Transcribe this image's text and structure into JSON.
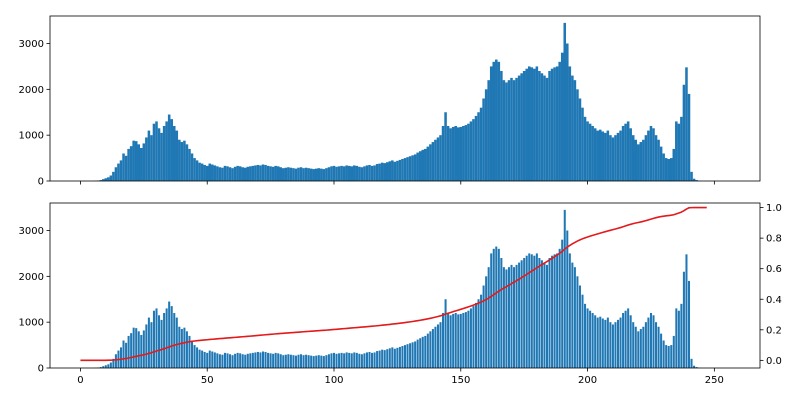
{
  "chart_data": [
    {
      "type": "bar",
      "title": "",
      "xlabel": "",
      "ylabel": "",
      "xlim": [
        -12,
        268
      ],
      "ylim": [
        0,
        3600
      ],
      "yticks": [
        0,
        1000,
        2000,
        3000
      ],
      "xticks": [
        0,
        50,
        100,
        150,
        200,
        250
      ],
      "show_xtick_labels": false,
      "grid": false,
      "bar_color": "#1f77b4",
      "x_start": 0,
      "values": [
        0,
        0,
        0,
        0,
        0,
        0,
        5,
        10,
        20,
        40,
        60,
        80,
        120,
        200,
        300,
        380,
        450,
        600,
        550,
        700,
        760,
        880,
        870,
        800,
        720,
        820,
        950,
        1100,
        1000,
        1250,
        1300,
        1150,
        1050,
        1200,
        1300,
        1450,
        1350,
        1200,
        1100,
        900,
        850,
        880,
        800,
        700,
        600,
        500,
        450,
        400,
        380,
        350,
        330,
        380,
        360,
        340,
        320,
        300,
        290,
        330,
        320,
        300,
        280,
        310,
        330,
        320,
        300,
        290,
        310,
        320,
        330,
        340,
        350,
        340,
        360,
        350,
        330,
        320,
        310,
        330,
        320,
        300,
        280,
        290,
        300,
        290,
        280,
        270,
        290,
        300,
        280,
        290,
        280,
        270,
        260,
        270,
        280,
        270,
        260,
        280,
        300,
        320,
        330,
        310,
        320,
        330,
        320,
        340,
        330,
        320,
        340,
        330,
        310,
        300,
        320,
        340,
        350,
        330,
        340,
        370,
        380,
        400,
        390,
        410,
        430,
        450,
        420,
        440,
        460,
        480,
        500,
        520,
        540,
        560,
        580,
        620,
        650,
        680,
        700,
        750,
        800,
        850,
        900,
        950,
        1000,
        1200,
        1500,
        1200,
        1150,
        1180,
        1200,
        1170,
        1180,
        1200,
        1220,
        1250,
        1300,
        1350,
        1420,
        1500,
        1600,
        1800,
        2000,
        2200,
        2500,
        2600,
        2650,
        2600,
        2400,
        2200,
        2150,
        2200,
        2250,
        2200,
        2250,
        2300,
        2350,
        2400,
        2450,
        2500,
        2480,
        2450,
        2500,
        2400,
        2350,
        2300,
        2250,
        2400,
        2450,
        2480,
        2500,
        2600,
        2800,
        3450,
        3000,
        2500,
        2300,
        2200,
        2000,
        1800,
        1600,
        1400,
        1300,
        1250,
        1200,
        1150,
        1100,
        1120,
        1080,
        1050,
        1100,
        1000,
        950,
        1000,
        1050,
        1100,
        1200,
        1250,
        1300,
        1150,
        1000,
        900,
        800,
        850,
        900,
        1000,
        1100,
        1200,
        1150,
        1000,
        900,
        750,
        600,
        500,
        480,
        500,
        700,
        1300,
        1250,
        1400,
        2100,
        2480,
        1900,
        200,
        50,
        20,
        5,
        0,
        0,
        0
      ]
    },
    {
      "type": "bar",
      "title": "",
      "xlabel": "",
      "ylabel": "",
      "xlim": [
        -12,
        268
      ],
      "ylim": [
        0,
        3600
      ],
      "yticks": [
        0,
        1000,
        2000,
        3000
      ],
      "xticks": [
        0,
        50,
        100,
        150,
        200,
        250
      ],
      "show_xtick_labels": true,
      "grid": false,
      "bar_color": "#1f77b4",
      "x_start": 0,
      "bar_width": 0.8,
      "values_ref": "same-as-top",
      "secondary_axis": {
        "type": "line",
        "color": "#e31a1c",
        "ylim": [
          -0.05,
          1.03
        ],
        "yticks": [
          0.0,
          0.2,
          0.4,
          0.6,
          0.8,
          1.0
        ],
        "yticklabels": [
          "0.0",
          "0.2",
          "0.4",
          "0.6",
          "0.8",
          "1.0"
        ],
        "line": "cumulative-of-bars"
      }
    }
  ]
}
